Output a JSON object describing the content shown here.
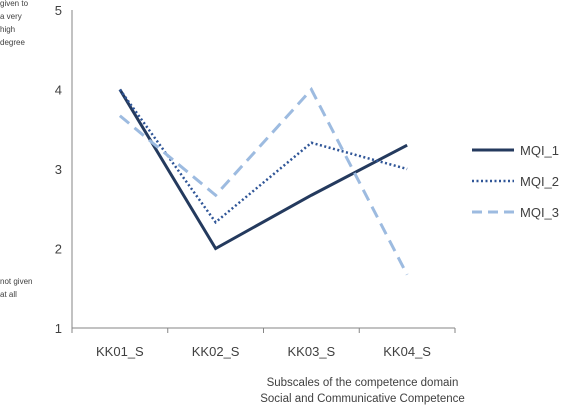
{
  "chart_data": {
    "type": "line",
    "categories": [
      "KK01_S",
      "KK02_S",
      "KK03_S",
      "KK04_S"
    ],
    "series": [
      {
        "name": "MQI_1",
        "values": [
          4.0,
          2.0,
          2.67,
          3.3
        ],
        "color": "#243a5e",
        "style": "solid"
      },
      {
        "name": "MQI_2",
        "values": [
          4.0,
          2.33,
          3.33,
          3.0
        ],
        "color": "#2f5597",
        "style": "dotted"
      },
      {
        "name": "MQI_3",
        "values": [
          3.67,
          2.67,
          4.0,
          1.67
        ],
        "color": "#9dbbe0",
        "style": "dashed"
      }
    ],
    "ylim": [
      1,
      5
    ],
    "yticks": [
      "1",
      "2",
      "3",
      "4",
      "5"
    ],
    "y_note_top": [
      "given to",
      "a very",
      "high",
      "degree"
    ],
    "y_note_bottom": [
      "not given",
      "at all"
    ],
    "xlabel_line1": "Subscales of the competence domain",
    "xlabel_line2": "Social and Communicative Competence",
    "grid": false,
    "legend_position": "right"
  }
}
